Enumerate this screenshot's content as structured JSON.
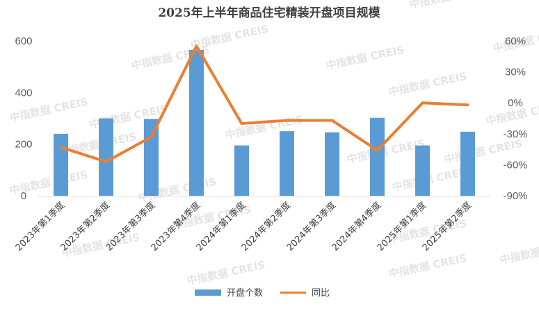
{
  "chart_data": {
    "type": "bar",
    "title": "2025年上半年商品住宅精装开盘项目规模",
    "categories": [
      "2023年第1季度",
      "2023年第2季度",
      "2023年第3季度",
      "2023年第4季度",
      "2024年第1季度",
      "2024年第2季度",
      "2024年第3季度",
      "2024年第4季度",
      "2025年第1季度",
      "2025年第2季度"
    ],
    "series": [
      {
        "name": "开盘个数",
        "type": "bar",
        "axis": "left",
        "color": "#5B9BD5",
        "values": [
          240,
          300,
          298,
          565,
          195,
          250,
          246,
          302,
          195,
          248
        ]
      },
      {
        "name": "同比",
        "type": "line",
        "axis": "right",
        "color": "#ED7D31",
        "values": [
          -43,
          -57,
          -33,
          55,
          -20,
          -17,
          -17,
          -46,
          0,
          -2
        ]
      }
    ],
    "left_axis": {
      "min": 0,
      "max": 600,
      "ticks": [
        "0",
        "200",
        "400",
        "600"
      ]
    },
    "right_axis": {
      "min": -90,
      "max": 60,
      "ticks": [
        "60%",
        "30%",
        "0%",
        "-30%",
        "-60%",
        "-90%"
      ]
    },
    "legend_position": "bottom",
    "grid": false
  },
  "watermark": "中指数据 CREIS"
}
